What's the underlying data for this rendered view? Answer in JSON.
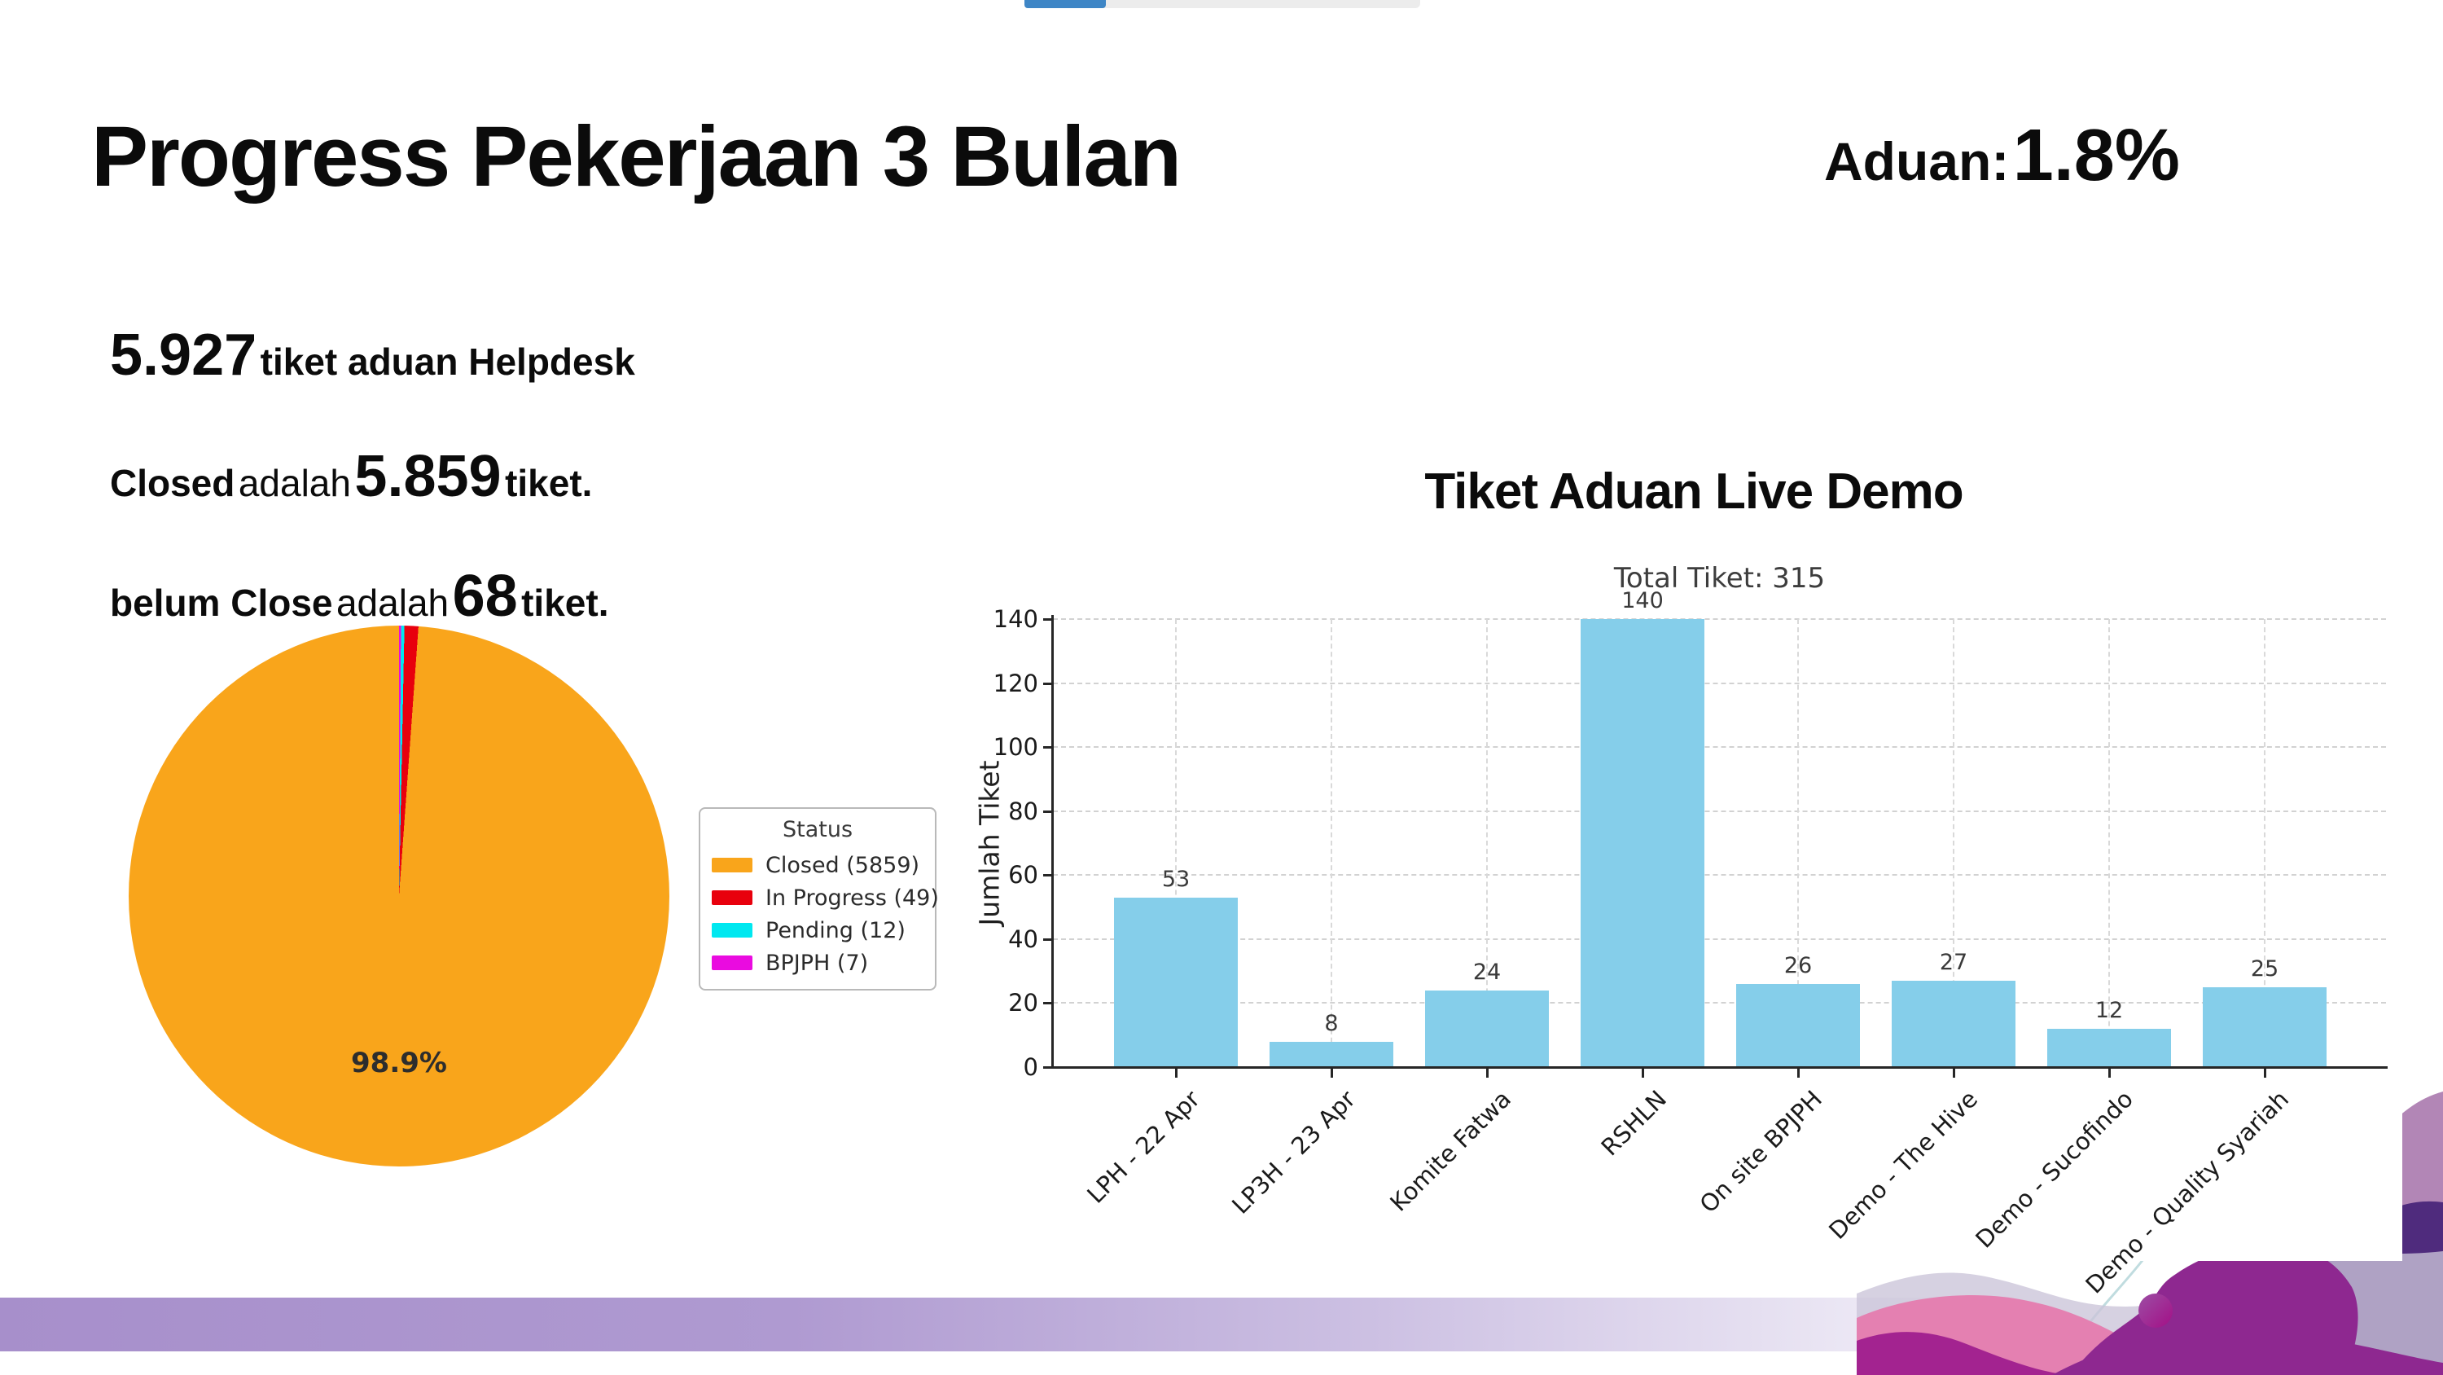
{
  "slide": {
    "title": "Progress Pekerjaan 3 Bulan",
    "aduan": {
      "label": "Aduan:",
      "value": "1.8%"
    },
    "stats": {
      "line1_number": "5.927",
      "line1_text": "tiket aduan Helpdesk",
      "line2_prefix": "Closed",
      "line2_mid": "adalah",
      "line2_number": "5.859",
      "line2_suffix": "tiket.",
      "line3_prefix": "belum Close",
      "line3_mid": "adalah",
      "line3_number": "68",
      "line3_suffix": "tiket."
    },
    "bar_section_heading": "Tiket Aduan Live Demo"
  },
  "chart_data": [
    {
      "type": "pie",
      "legend_title": "Status",
      "slices": [
        {
          "label": "Closed",
          "value": 5859,
          "legend": "Closed (5859)",
          "color": "#F9A51B"
        },
        {
          "label": "In Progress",
          "value": 49,
          "legend": "In Progress (49)",
          "color": "#E8000D"
        },
        {
          "label": "Pending",
          "value": 12,
          "legend": "Pending (12)",
          "color": "#00E8F0"
        },
        {
          "label": "BPJPH",
          "value": 7,
          "legend": "BPJPH (7)",
          "color": "#EA0BE0"
        }
      ],
      "start_angle": 90,
      "direction": "counterclockwise",
      "pct_label": "98.9%",
      "legend_position": "right"
    },
    {
      "type": "bar",
      "title": "Total Tiket: 315",
      "categories": [
        "LPH - 22 Apr",
        "LP3H - 23 Apr",
        "Komite Fatwa",
        "RSHLN",
        "On site BPJPH",
        "Demo - The Hive",
        "Demo - Sucofindo",
        "Demo - Quality Syariah"
      ],
      "values": [
        53,
        8,
        24,
        140,
        26,
        27,
        12,
        25
      ],
      "xlabel": "",
      "ylabel": "Jumlah Tiket",
      "yticks": [
        0,
        20,
        40,
        60,
        80,
        100,
        120,
        140
      ],
      "ylim": [
        0,
        148
      ],
      "bar_color": "#85CEEA",
      "grid": "dashed",
      "xtick_rotation": 45
    }
  ],
  "theme": {
    "progress_blue": "#3E86C6",
    "band_purple": "#A78FCB",
    "accent_purple": "#8E2890",
    "dark_purple": "#4F2B7D"
  }
}
